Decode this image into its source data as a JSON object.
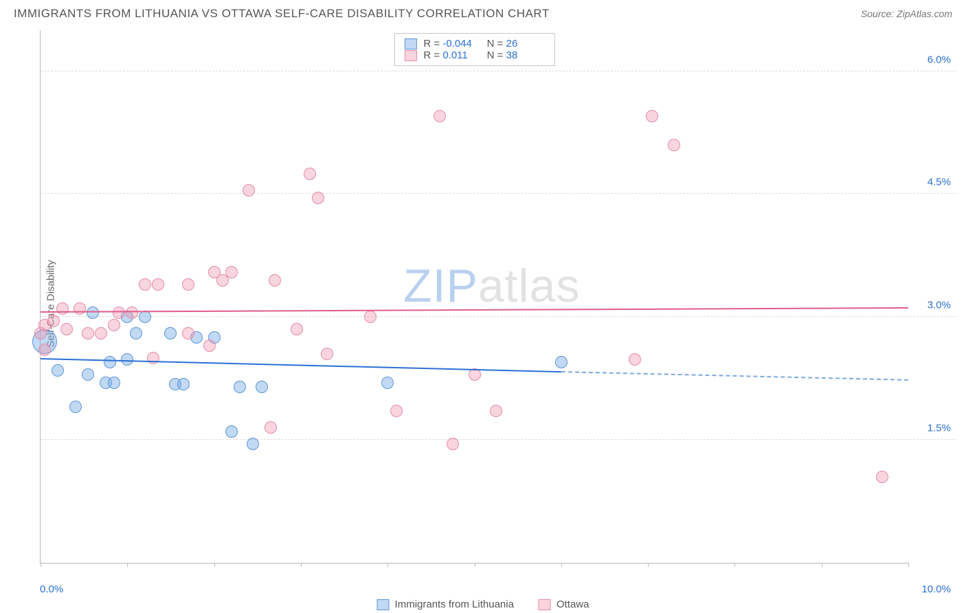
{
  "title": "IMMIGRANTS FROM LITHUANIA VS OTTAWA SELF-CARE DISABILITY CORRELATION CHART",
  "source": "Source: ZipAtlas.com",
  "ylabel": "Self-Care Disability",
  "watermark": {
    "zip": "ZIP",
    "atlas": "atlas"
  },
  "chart": {
    "type": "scatter",
    "xlim": [
      0.0,
      10.0
    ],
    "ylim": [
      0.0,
      6.5
    ],
    "yticks": [
      1.5,
      3.0,
      4.5,
      6.0
    ],
    "ytick_labels": [
      "1.5%",
      "3.0%",
      "4.5%",
      "6.0%"
    ],
    "xtick_positions": [
      0.0,
      1.0,
      2.0,
      3.0,
      4.0,
      5.0,
      6.0,
      7.0,
      8.0,
      9.0,
      10.0
    ],
    "xtick_left_label": "0.0%",
    "xtick_right_label": "10.0%",
    "background_color": "#ffffff",
    "grid_color": "#dddddd",
    "axis_color": "#bbbbbb",
    "tick_label_color": "#2b6fd6",
    "marker_radius": 9,
    "marker_radius_large": 14,
    "cluster_radius": 18,
    "series": [
      {
        "key": "lithuania",
        "name": "Immigrants from Lithuania",
        "fill": "rgba(120,170,230,0.45)",
        "stroke": "#5a94d8",
        "line_color": "#2b6fd6",
        "dash_color": "#7ba8de",
        "R": "-0.044",
        "N": "26",
        "regression": {
          "x1": 0.0,
          "y1": 2.48,
          "x2": 6.0,
          "y2": 2.32,
          "x2_ext": 10.0,
          "y2_ext": 2.22
        },
        "points": [
          {
            "x": 0.05,
            "y": 2.7,
            "r": 18
          },
          {
            "x": 0.2,
            "y": 2.35
          },
          {
            "x": 0.4,
            "y": 1.9
          },
          {
            "x": 0.55,
            "y": 2.3
          },
          {
            "x": 0.6,
            "y": 3.05
          },
          {
            "x": 0.75,
            "y": 2.2
          },
          {
            "x": 0.8,
            "y": 2.45
          },
          {
            "x": 0.85,
            "y": 2.2
          },
          {
            "x": 1.0,
            "y": 3.0
          },
          {
            "x": 1.0,
            "y": 2.48
          },
          {
            "x": 1.1,
            "y": 2.8
          },
          {
            "x": 1.2,
            "y": 3.0
          },
          {
            "x": 1.5,
            "y": 2.8
          },
          {
            "x": 1.55,
            "y": 2.18
          },
          {
            "x": 1.65,
            "y": 2.18
          },
          {
            "x": 1.8,
            "y": 2.75
          },
          {
            "x": 2.0,
            "y": 2.75
          },
          {
            "x": 2.2,
            "y": 1.6
          },
          {
            "x": 2.3,
            "y": 2.15
          },
          {
            "x": 2.45,
            "y": 1.45
          },
          {
            "x": 2.55,
            "y": 2.15
          },
          {
            "x": 4.0,
            "y": 2.2
          },
          {
            "x": 6.0,
            "y": 2.45,
            "r": 9
          }
        ]
      },
      {
        "key": "ottawa",
        "name": "Ottawa",
        "fill": "rgba(240,150,175,0.40)",
        "stroke": "#e48aa4",
        "line_color": "#e05c86",
        "R": "0.011",
        "N": "38",
        "regression": {
          "x1": 0.0,
          "y1": 3.05,
          "x2": 10.0,
          "y2": 3.1
        },
        "points": [
          {
            "x": 0.0,
            "y": 2.8
          },
          {
            "x": 0.05,
            "y": 2.6
          },
          {
            "x": 0.05,
            "y": 2.9
          },
          {
            "x": 0.15,
            "y": 2.95
          },
          {
            "x": 0.25,
            "y": 3.1
          },
          {
            "x": 0.3,
            "y": 2.85
          },
          {
            "x": 0.45,
            "y": 3.1
          },
          {
            "x": 0.55,
            "y": 2.8
          },
          {
            "x": 0.7,
            "y": 2.8
          },
          {
            "x": 0.85,
            "y": 2.9
          },
          {
            "x": 0.9,
            "y": 3.05
          },
          {
            "x": 1.05,
            "y": 3.05
          },
          {
            "x": 1.2,
            "y": 3.4
          },
          {
            "x": 1.3,
            "y": 2.5
          },
          {
            "x": 1.35,
            "y": 3.4
          },
          {
            "x": 1.7,
            "y": 2.8
          },
          {
            "x": 1.7,
            "y": 3.4
          },
          {
            "x": 1.95,
            "y": 2.65
          },
          {
            "x": 2.0,
            "y": 3.55
          },
          {
            "x": 2.1,
            "y": 3.45
          },
          {
            "x": 2.2,
            "y": 3.55
          },
          {
            "x": 2.4,
            "y": 4.55
          },
          {
            "x": 2.65,
            "y": 1.65
          },
          {
            "x": 2.7,
            "y": 3.45
          },
          {
            "x": 2.95,
            "y": 2.85
          },
          {
            "x": 3.1,
            "y": 4.75
          },
          {
            "x": 3.2,
            "y": 4.45
          },
          {
            "x": 3.3,
            "y": 2.55
          },
          {
            "x": 3.8,
            "y": 3.0
          },
          {
            "x": 4.1,
            "y": 1.85
          },
          {
            "x": 4.6,
            "y": 5.45
          },
          {
            "x": 4.75,
            "y": 1.45
          },
          {
            "x": 5.0,
            "y": 2.3
          },
          {
            "x": 5.25,
            "y": 1.85
          },
          {
            "x": 6.85,
            "y": 2.48
          },
          {
            "x": 7.05,
            "y": 5.45
          },
          {
            "x": 7.3,
            "y": 5.1
          },
          {
            "x": 9.7,
            "y": 1.05
          }
        ]
      }
    ]
  },
  "legend_top": {
    "r_label": "R =",
    "n_label": "N ="
  }
}
